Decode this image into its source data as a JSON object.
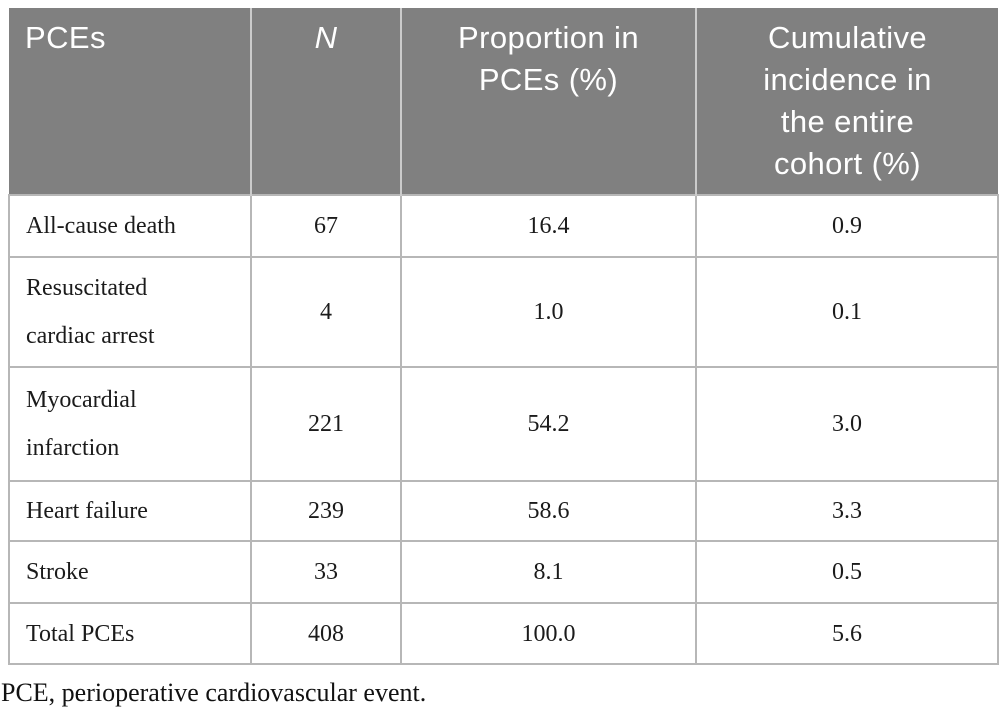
{
  "colors": {
    "header_bg": "#808080",
    "header_text": "#ffffff",
    "header_divider": "#cbcbcb",
    "border": "#b7b7b7",
    "body_text": "#1b1b1b"
  },
  "table": {
    "columns": [
      {
        "label": "PCEs"
      },
      {
        "label": "N",
        "italic": true
      },
      {
        "label": "Proportion in\nPCEs (%)"
      },
      {
        "label": "Cumulative\nincidence in\nthe entire\ncohort (%)"
      }
    ],
    "rows": [
      {
        "pce": "All-cause death",
        "n": "67",
        "proportion": "16.4",
        "cumulative": "0.9"
      },
      {
        "pce": "Resuscitated\ncardiac arrest",
        "n": "4",
        "proportion": "1.0",
        "cumulative": "0.1"
      },
      {
        "pce": "Myocardial\ninfarction",
        "n": "221",
        "proportion": "54.2",
        "cumulative": "3.0"
      },
      {
        "pce": "Heart failure",
        "n": "239",
        "proportion": "58.6",
        "cumulative": "3.3"
      },
      {
        "pce": "Stroke",
        "n": "33",
        "proportion": "8.1",
        "cumulative": "0.5"
      },
      {
        "pce": "Total PCEs",
        "n": "408",
        "proportion": "100.0",
        "cumulative": "5.6"
      }
    ],
    "footnote": "PCE, perioperative cardiovascular event."
  }
}
